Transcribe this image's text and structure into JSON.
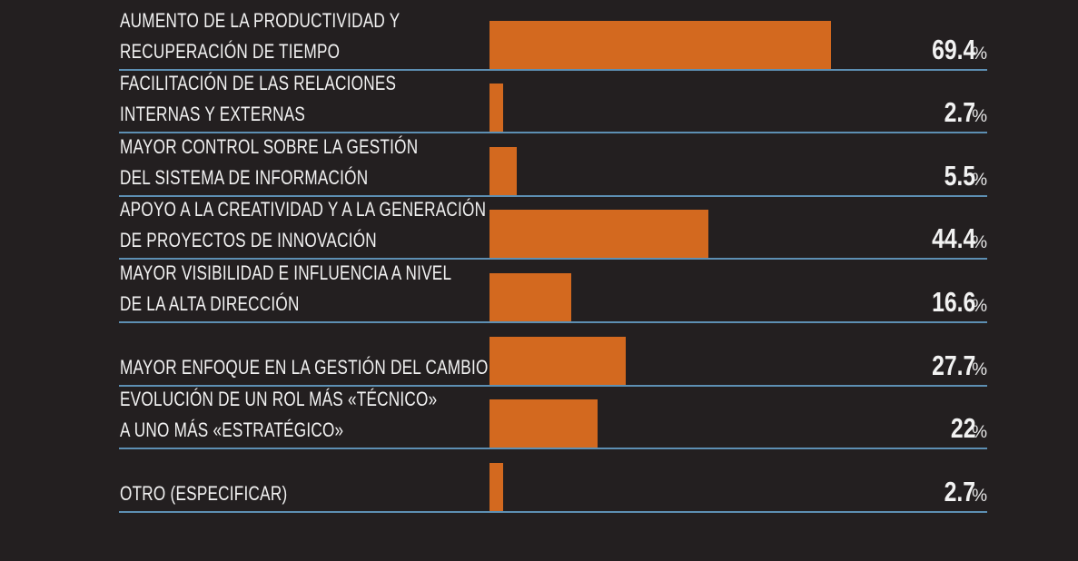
{
  "chart_data": {
    "type": "bar",
    "orientation": "horizontal",
    "xlim": [
      0,
      100
    ],
    "unit": "%",
    "categories": [
      [
        "AUMENTO DE LA PRODUCTIVIDAD Y",
        "RECUPERACIÓN DE TIEMPO"
      ],
      [
        "FACILITACIÓN DE LAS RELACIONES",
        "INTERNAS Y EXTERNAS"
      ],
      [
        "MAYOR CONTROL SOBRE LA GESTIÓN",
        "DEL SISTEMA DE INFORMACIÓN"
      ],
      [
        "APOYO A LA CREATIVIDAD Y A LA GENERACIÓN",
        "DE PROYECTOS DE INNOVACIÓN"
      ],
      [
        "MAYOR VISIBILIDAD E INFLUENCIA A NIVEL",
        "DE LA ALTA DIRECCIÓN"
      ],
      [
        "",
        "MAYOR ENFOQUE EN LA GESTIÓN DEL CAMBIO"
      ],
      [
        "EVOLUCIÓN DE UN ROL MÁS «TÉCNICO»",
        "A UNO MÁS «ESTRATÉGICO»"
      ],
      [
        "",
        "OTRO (ESPECIFICAR)"
      ]
    ],
    "values": [
      69.4,
      2.7,
      5.5,
      44.4,
      16.6,
      27.7,
      22,
      2.7
    ],
    "value_labels": [
      "69.4",
      "2.7",
      "5.5",
      "44.4",
      "16.6",
      "27.7",
      "22",
      "2.7"
    ],
    "percent_sign": "%",
    "colors": {
      "bar": "#d3691f",
      "divider": "#5d8fb3",
      "background": "#231f20"
    }
  }
}
